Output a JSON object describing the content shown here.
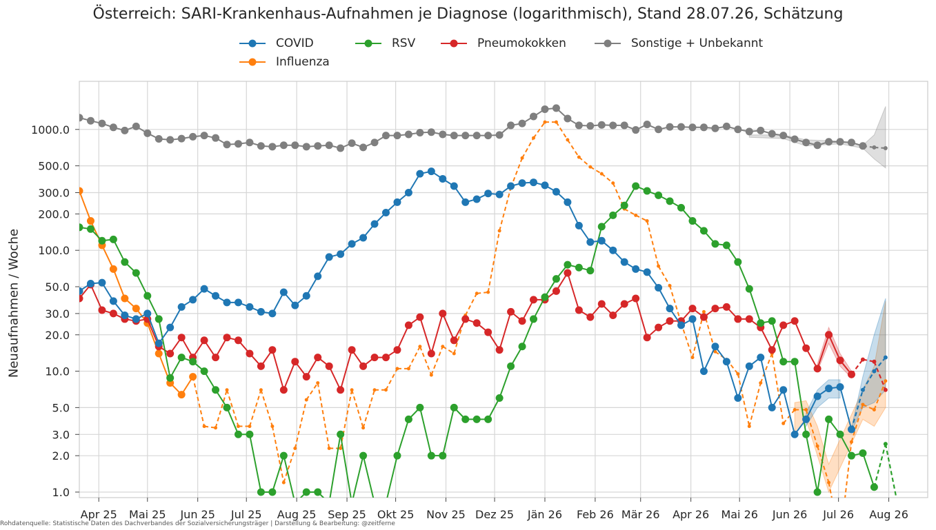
{
  "chart_data": {
    "type": "line",
    "title": "Österreich: SARI-Krankenhaus-Aufnahmen je Diagnose (logarithmisch), Stand 28.07.26, Schätzung",
    "ylabel": "Neuaufnahmen / Woche",
    "xlabel": "",
    "yscale": "log",
    "ylim": [
      0.9,
      2500
    ],
    "xlim": [
      "2025-03-20",
      "2026-08-25"
    ],
    "grid": true,
    "legend_position": "top-center",
    "y_ticks": [
      1,
      2,
      3,
      5,
      10,
      20,
      30,
      50,
      100,
      200,
      300,
      500,
      1000
    ],
    "y_tick_labels": [
      "1.0",
      "2.0",
      "3.0",
      "5.0",
      "10.0",
      "20.0",
      "30.0",
      "50.0",
      "100.0",
      "200.0",
      "300.0",
      "500.0",
      "1000.0"
    ],
    "x_ticks": [
      "2025-04-01",
      "2025-05-01",
      "2025-06-01",
      "2025-07-01",
      "2025-08-01",
      "2025-09-01",
      "2025-10-01",
      "2025-11-01",
      "2025-12-01",
      "2026-01-01",
      "2026-02-01",
      "2026-03-01",
      "2026-04-01",
      "2026-05-01",
      "2026-06-01",
      "2026-07-01",
      "2026-08-01"
    ],
    "x_tick_labels": [
      "Apr 25",
      "Mai 25",
      "Jun 25",
      "Jul 25",
      "Aug 25",
      "Sep 25",
      "Okt 25",
      "Nov 25",
      "Dez 25",
      "Jän 26",
      "Feb 26",
      "Mär 26",
      "Apr 26",
      "Mai 26",
      "Jun 26",
      "Jul 26",
      "Aug 26"
    ],
    "week_start": "2025-03-20",
    "series": [
      {
        "name": "COVID",
        "color": "#1f77b4",
        "style": "solid",
        "values": [
          46,
          53,
          54,
          38,
          29,
          27,
          30,
          17,
          23,
          34,
          39,
          48,
          42,
          37,
          37,
          34,
          31,
          30,
          45,
          35,
          42,
          61,
          88,
          93,
          113,
          127,
          165,
          205,
          250,
          300,
          430,
          450,
          390,
          340,
          250,
          265,
          295,
          290,
          340,
          360,
          365,
          345,
          305,
          250,
          160,
          117,
          120,
          100,
          80,
          70,
          66,
          49,
          33,
          24,
          27,
          10,
          16,
          12,
          6,
          11,
          13,
          5,
          7,
          3,
          4,
          6.2,
          7.2,
          7.4,
          3.3
        ],
        "nowcast": [
          [
            68,
            3.3
          ],
          [
            69,
            7
          ],
          [
            70,
            10
          ],
          [
            71,
            13
          ]
        ],
        "band": [
          [
            68,
            3.2,
            3.4
          ],
          [
            69,
            5,
            9
          ],
          [
            70,
            5.5,
            20
          ],
          [
            71,
            7,
            40
          ]
        ],
        "band_observed": [
          [
            64,
            3.5,
            4.5
          ],
          [
            65,
            5,
            7
          ],
          [
            66,
            6,
            8.5
          ],
          [
            67,
            6,
            8.5
          ]
        ]
      },
      {
        "name": "Influenza",
        "color": "#ff7f0e",
        "style": "solid-then-dashed",
        "values": [
          310,
          175,
          110,
          70,
          40,
          33,
          25,
          14,
          8,
          6.4,
          9,
          null,
          null,
          null,
          null,
          null,
          null,
          null,
          null,
          null,
          null,
          null,
          null,
          null,
          null,
          null,
          null,
          null,
          null,
          null,
          null,
          null,
          null,
          null,
          null,
          null,
          null,
          null,
          null,
          null,
          null,
          null,
          null,
          null,
          null,
          null,
          null,
          null,
          null,
          null,
          null,
          null,
          null,
          null,
          null,
          null,
          null,
          null,
          null,
          null,
          null,
          null,
          null,
          null,
          null,
          null,
          null,
          null,
          null
        ],
        "dashed_values": [
          null,
          null,
          null,
          null,
          null,
          null,
          null,
          null,
          null,
          null,
          9,
          3.5,
          3.4,
          7,
          3.5,
          3.5,
          7,
          3.5,
          1.2,
          2.3,
          5.8,
          8,
          2.3,
          2.3,
          7,
          3.4,
          7,
          7,
          10.5,
          10.5,
          16,
          9.3,
          16,
          14,
          29,
          44,
          45,
          145,
          330,
          580,
          850,
          1150,
          1150,
          820,
          590,
          490,
          430,
          360,
          220,
          195,
          175,
          74,
          51,
          25,
          13,
          31,
          14.5,
          12.5,
          9.5,
          3.5,
          8,
          14,
          3.7,
          4.8,
          4.8,
          2.4,
          1.2,
          0.4,
          2.6,
          5.3,
          4.8,
          8.3
        ],
        "band": [
          [
            63,
            3,
            5.5
          ],
          [
            64,
            4,
            5.7
          ],
          [
            65,
            2,
            3.5
          ],
          [
            66,
            1,
            1.7
          ],
          [
            69,
            4,
            7
          ],
          [
            70,
            3.5,
            11
          ],
          [
            71,
            5,
            38
          ]
        ]
      },
      {
        "name": "RSV",
        "color": "#2ca02c",
        "style": "solid",
        "values": [
          155,
          150,
          120,
          123,
          80,
          65,
          42,
          27,
          8.8,
          13,
          12,
          10,
          7,
          5,
          3,
          3,
          1,
          1,
          2,
          0.3,
          1,
          1,
          0.2,
          3,
          0.2,
          2,
          0.2,
          0.2,
          2,
          4,
          5,
          2,
          2,
          5,
          4,
          4,
          4,
          6,
          11,
          16,
          27,
          41,
          58,
          76,
          72,
          68,
          157,
          195,
          235,
          340,
          310,
          285,
          255,
          225,
          175,
          145,
          113,
          110,
          80,
          48,
          25,
          26,
          12,
          12,
          3,
          1,
          4,
          3,
          2,
          2.1,
          1.1
        ],
        "nowcast": [
          [
            70,
            1.1
          ],
          [
            71,
            2.5
          ],
          [
            72,
            0.2
          ]
        ],
        "band": [
          [
            71,
            1.5,
            3
          ]
        ]
      },
      {
        "name": "Pneumokokken",
        "color": "#d62728",
        "style": "solid",
        "values": [
          40,
          52,
          32,
          30,
          27,
          26,
          27,
          16,
          14,
          19,
          13,
          18,
          13,
          19,
          18,
          14,
          11,
          15,
          7,
          12,
          9,
          13,
          11,
          7,
          15,
          11,
          13,
          13,
          15,
          24,
          28,
          14,
          30,
          18,
          27,
          25,
          21,
          15,
          31,
          26,
          39,
          39,
          46,
          65,
          32,
          28,
          36,
          29,
          36,
          40,
          19,
          23,
          26,
          26,
          33,
          28,
          33,
          34,
          27,
          27,
          23,
          15,
          24,
          26,
          15.5,
          10.5,
          20,
          12.3,
          9.4
        ],
        "nowcast": [
          [
            68,
            9.4
          ],
          [
            69,
            12.5
          ],
          [
            70,
            12
          ],
          [
            71,
            7
          ]
        ],
        "band": [
          [
            65,
            10,
            11.5
          ],
          [
            66,
            17,
            23
          ],
          [
            67,
            11,
            14
          ],
          [
            68,
            8.8,
            10
          ]
        ]
      },
      {
        "name": "Sonstige + Unbekannt",
        "color": "#7f7f7f",
        "style": "solid",
        "values": [
          1250,
          1180,
          1120,
          1040,
          980,
          1060,
          930,
          835,
          820,
          840,
          870,
          890,
          850,
          750,
          760,
          780,
          730,
          720,
          740,
          740,
          720,
          730,
          740,
          700,
          770,
          710,
          780,
          890,
          890,
          910,
          940,
          950,
          910,
          890,
          890,
          890,
          890,
          900,
          1080,
          1120,
          1280,
          1470,
          1500,
          1230,
          1080,
          1070,
          1090,
          1080,
          1080,
          990,
          1100,
          1000,
          1050,
          1050,
          1040,
          1040,
          1020,
          1060,
          1000,
          960,
          980,
          920,
          890,
          830,
          780,
          740,
          790,
          790,
          780,
          730
        ],
        "nowcast": [
          [
            69,
            730
          ],
          [
            70,
            710
          ],
          [
            71,
            700
          ]
        ],
        "band": [
          [
            59,
            860,
            900
          ],
          [
            62,
            840,
            900
          ],
          [
            64,
            730,
            820
          ],
          [
            67,
            760,
            800
          ],
          [
            69,
            700,
            740
          ],
          [
            70,
            570,
            900
          ],
          [
            71,
            480,
            1550
          ]
        ]
      }
    ]
  },
  "footer": "Rohdatenquelle: Statistische Daten des Dachverbandes der Sozialversicherungsträger | Darstellung & Bearbeitung: @zeitferne"
}
